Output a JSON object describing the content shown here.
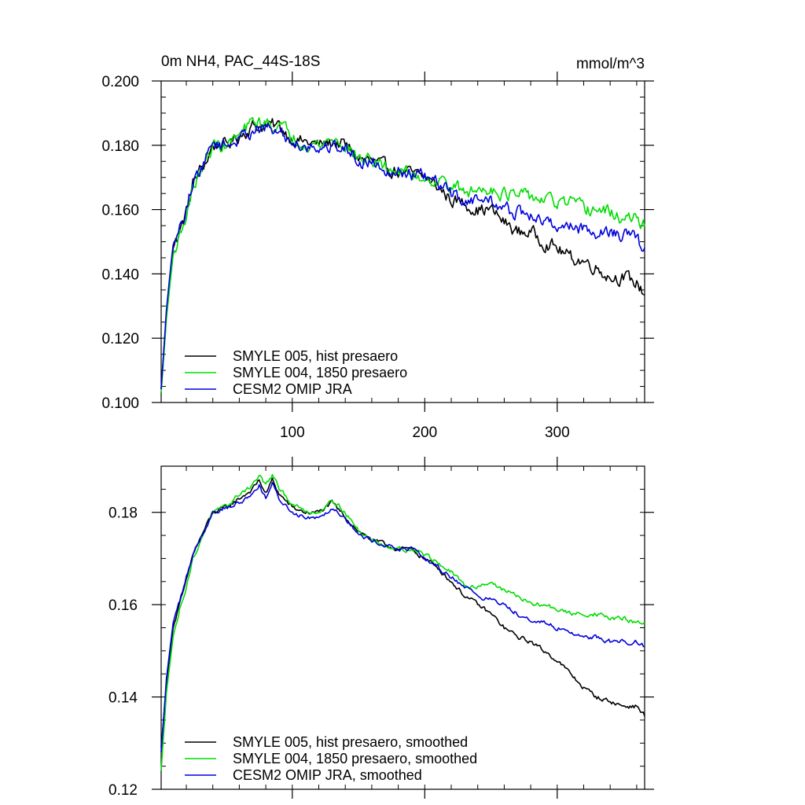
{
  "chart_data": [
    {
      "type": "line",
      "title": "0m NH4, PAC_44S-18S",
      "units": "mmol/m^3",
      "xlim": [
        1,
        366
      ],
      "ylim": [
        0.1,
        0.2
      ],
      "xticks": [
        100,
        200,
        300
      ],
      "xtick_labels": [
        "100",
        "200",
        "300"
      ],
      "yticks": [
        0.1,
        0.12,
        0.14,
        0.16,
        0.18,
        0.2
      ],
      "ytick_labels": [
        "0.100",
        "0.120",
        "0.140",
        "0.160",
        "0.180",
        "0.200"
      ],
      "legend_position": "bottom-left",
      "series": [
        {
          "name": "SMYLE 005, hist presaero",
          "color": "#000000",
          "keypoints": [
            [
              1,
              0.104
            ],
            [
              5,
              0.128
            ],
            [
              10,
              0.148
            ],
            [
              15,
              0.153
            ],
            [
              20,
              0.159
            ],
            [
              25,
              0.168
            ],
            [
              30,
              0.172
            ],
            [
              35,
              0.175
            ],
            [
              40,
              0.18
            ],
            [
              50,
              0.18
            ],
            [
              60,
              0.183
            ],
            [
              70,
              0.186
            ],
            [
              80,
              0.186
            ],
            [
              90,
              0.186
            ],
            [
              100,
              0.182
            ],
            [
              110,
              0.181
            ],
            [
              120,
              0.18
            ],
            [
              130,
              0.181
            ],
            [
              140,
              0.18
            ],
            [
              150,
              0.176
            ],
            [
              160,
              0.175
            ],
            [
              170,
              0.173
            ],
            [
              180,
              0.172
            ],
            [
              190,
              0.171
            ],
            [
              200,
              0.17
            ],
            [
              210,
              0.167
            ],
            [
              220,
              0.163
            ],
            [
              230,
              0.162
            ],
            [
              240,
              0.16
            ],
            [
              250,
              0.16
            ],
            [
              260,
              0.156
            ],
            [
              270,
              0.153
            ],
            [
              280,
              0.153
            ],
            [
              290,
              0.15
            ],
            [
              300,
              0.148
            ],
            [
              310,
              0.145
            ],
            [
              320,
              0.144
            ],
            [
              330,
              0.142
            ],
            [
              340,
              0.139
            ],
            [
              350,
              0.139
            ],
            [
              360,
              0.137
            ],
            [
              366,
              0.134
            ]
          ]
        },
        {
          "name": "SMYLE 004, 1850 presaero",
          "color": "#00dd00",
          "keypoints": [
            [
              1,
              0.103
            ],
            [
              5,
              0.126
            ],
            [
              10,
              0.146
            ],
            [
              15,
              0.152
            ],
            [
              20,
              0.158
            ],
            [
              25,
              0.167
            ],
            [
              30,
              0.171
            ],
            [
              35,
              0.175
            ],
            [
              40,
              0.18
            ],
            [
              50,
              0.18
            ],
            [
              60,
              0.183
            ],
            [
              70,
              0.187
            ],
            [
              80,
              0.187
            ],
            [
              90,
              0.186
            ],
            [
              100,
              0.183
            ],
            [
              110,
              0.181
            ],
            [
              120,
              0.18
            ],
            [
              130,
              0.182
            ],
            [
              140,
              0.18
            ],
            [
              150,
              0.176
            ],
            [
              160,
              0.175
            ],
            [
              170,
              0.173
            ],
            [
              180,
              0.172
            ],
            [
              190,
              0.171
            ],
            [
              200,
              0.17
            ],
            [
              210,
              0.169
            ],
            [
              220,
              0.168
            ],
            [
              230,
              0.165
            ],
            [
              240,
              0.166
            ],
            [
              250,
              0.167
            ],
            [
              260,
              0.165
            ],
            [
              270,
              0.164
            ],
            [
              280,
              0.164
            ],
            [
              290,
              0.163
            ],
            [
              300,
              0.162
            ],
            [
              310,
              0.162
            ],
            [
              320,
              0.16
            ],
            [
              330,
              0.16
            ],
            [
              340,
              0.159
            ],
            [
              350,
              0.157
            ],
            [
              360,
              0.157
            ],
            [
              366,
              0.155
            ]
          ]
        },
        {
          "name": "CESM2 OMIP JRA",
          "color": "#0000dd",
          "keypoints": [
            [
              1,
              0.104
            ],
            [
              5,
              0.129
            ],
            [
              10,
              0.149
            ],
            [
              15,
              0.154
            ],
            [
              20,
              0.16
            ],
            [
              25,
              0.169
            ],
            [
              30,
              0.172
            ],
            [
              35,
              0.176
            ],
            [
              40,
              0.181
            ],
            [
              50,
              0.18
            ],
            [
              60,
              0.182
            ],
            [
              70,
              0.185
            ],
            [
              80,
              0.185
            ],
            [
              90,
              0.184
            ],
            [
              100,
              0.181
            ],
            [
              110,
              0.18
            ],
            [
              120,
              0.179
            ],
            [
              130,
              0.18
            ],
            [
              140,
              0.179
            ],
            [
              150,
              0.175
            ],
            [
              160,
              0.175
            ],
            [
              170,
              0.173
            ],
            [
              180,
              0.172
            ],
            [
              190,
              0.171
            ],
            [
              200,
              0.17
            ],
            [
              210,
              0.168
            ],
            [
              220,
              0.165
            ],
            [
              230,
              0.163
            ],
            [
              240,
              0.163
            ],
            [
              250,
              0.163
            ],
            [
              260,
              0.16
            ],
            [
              270,
              0.159
            ],
            [
              280,
              0.158
            ],
            [
              290,
              0.156
            ],
            [
              300,
              0.155
            ],
            [
              310,
              0.155
            ],
            [
              320,
              0.154
            ],
            [
              330,
              0.153
            ],
            [
              340,
              0.153
            ],
            [
              350,
              0.152
            ],
            [
              360,
              0.151
            ],
            [
              366,
              0.147
            ]
          ]
        }
      ]
    },
    {
      "type": "line",
      "title": "",
      "xlim": [
        1,
        366
      ],
      "ylim": [
        0.12,
        0.19
      ],
      "xticks": [
        100,
        200,
        300
      ],
      "yticks": [
        0.12,
        0.14,
        0.16,
        0.18
      ],
      "ytick_labels": [
        "0.12",
        "0.14",
        "0.16",
        "0.18"
      ],
      "legend_position": "bottom-left",
      "series": [
        {
          "name": "SMYLE 005, hist presaero, smoothed",
          "color": "#000000",
          "keypoints": [
            [
              1,
              0.129
            ],
            [
              5,
              0.143
            ],
            [
              10,
              0.155
            ],
            [
              15,
              0.16
            ],
            [
              20,
              0.165
            ],
            [
              25,
              0.171
            ],
            [
              30,
              0.174
            ],
            [
              35,
              0.177
            ],
            [
              40,
              0.18
            ],
            [
              50,
              0.181
            ],
            [
              60,
              0.183
            ],
            [
              70,
              0.185
            ],
            [
              75,
              0.187
            ],
            [
              80,
              0.184
            ],
            [
              85,
              0.187
            ],
            [
              90,
              0.184
            ],
            [
              100,
              0.181
            ],
            [
              110,
              0.18
            ],
            [
              120,
              0.18
            ],
            [
              130,
              0.182
            ],
            [
              140,
              0.179
            ],
            [
              150,
              0.176
            ],
            [
              160,
              0.174
            ],
            [
              170,
              0.173
            ],
            [
              180,
              0.172
            ],
            [
              190,
              0.172
            ],
            [
              200,
              0.17
            ],
            [
              210,
              0.168
            ],
            [
              220,
              0.165
            ],
            [
              230,
              0.162
            ],
            [
              240,
              0.16
            ],
            [
              250,
              0.158
            ],
            [
              260,
              0.155
            ],
            [
              270,
              0.153
            ],
            [
              280,
              0.152
            ],
            [
              290,
              0.15
            ],
            [
              300,
              0.148
            ],
            [
              310,
              0.145
            ],
            [
              320,
              0.142
            ],
            [
              330,
              0.14
            ],
            [
              340,
              0.139
            ],
            [
              350,
              0.138
            ],
            [
              360,
              0.138
            ],
            [
              366,
              0.136
            ]
          ]
        },
        {
          "name": "SMYLE 004, 1850 presaero, smoothed",
          "color": "#00dd00",
          "keypoints": [
            [
              1,
              0.124
            ],
            [
              5,
              0.141
            ],
            [
              10,
              0.153
            ],
            [
              15,
              0.159
            ],
            [
              20,
              0.164
            ],
            [
              25,
              0.17
            ],
            [
              30,
              0.173
            ],
            [
              35,
              0.177
            ],
            [
              40,
              0.18
            ],
            [
              50,
              0.181
            ],
            [
              60,
              0.184
            ],
            [
              70,
              0.186
            ],
            [
              75,
              0.188
            ],
            [
              80,
              0.186
            ],
            [
              85,
              0.188
            ],
            [
              90,
              0.185
            ],
            [
              100,
              0.182
            ],
            [
              110,
              0.18
            ],
            [
              120,
              0.18
            ],
            [
              130,
              0.183
            ],
            [
              140,
              0.18
            ],
            [
              150,
              0.176
            ],
            [
              160,
              0.174
            ],
            [
              170,
              0.173
            ],
            [
              180,
              0.172
            ],
            [
              190,
              0.172
            ],
            [
              200,
              0.171
            ],
            [
              210,
              0.169
            ],
            [
              220,
              0.167
            ],
            [
              230,
              0.164
            ],
            [
              240,
              0.164
            ],
            [
              250,
              0.165
            ],
            [
              260,
              0.163
            ],
            [
              270,
              0.162
            ],
            [
              280,
              0.16
            ],
            [
              290,
              0.16
            ],
            [
              300,
              0.159
            ],
            [
              310,
              0.158
            ],
            [
              320,
              0.158
            ],
            [
              330,
              0.158
            ],
            [
              340,
              0.157
            ],
            [
              350,
              0.157
            ],
            [
              360,
              0.156
            ],
            [
              366,
              0.156
            ]
          ]
        },
        {
          "name": "CESM2 OMIP JRA, smoothed",
          "color": "#0000dd",
          "keypoints": [
            [
              1,
              0.128
            ],
            [
              5,
              0.144
            ],
            [
              10,
              0.156
            ],
            [
              15,
              0.161
            ],
            [
              20,
              0.166
            ],
            [
              25,
              0.171
            ],
            [
              30,
              0.174
            ],
            [
              35,
              0.177
            ],
            [
              40,
              0.18
            ],
            [
              50,
              0.181
            ],
            [
              60,
              0.182
            ],
            [
              70,
              0.184
            ],
            [
              75,
              0.186
            ],
            [
              80,
              0.183
            ],
            [
              85,
              0.186
            ],
            [
              90,
              0.183
            ],
            [
              100,
              0.18
            ],
            [
              110,
              0.179
            ],
            [
              120,
              0.179
            ],
            [
              130,
              0.181
            ],
            [
              140,
              0.179
            ],
            [
              150,
              0.175
            ],
            [
              160,
              0.174
            ],
            [
              170,
              0.173
            ],
            [
              180,
              0.172
            ],
            [
              190,
              0.172
            ],
            [
              200,
              0.17
            ],
            [
              210,
              0.168
            ],
            [
              220,
              0.166
            ],
            [
              230,
              0.164
            ],
            [
              240,
              0.162
            ],
            [
              250,
              0.161
            ],
            [
              260,
              0.16
            ],
            [
              270,
              0.158
            ],
            [
              280,
              0.157
            ],
            [
              290,
              0.156
            ],
            [
              300,
              0.155
            ],
            [
              310,
              0.154
            ],
            [
              320,
              0.153
            ],
            [
              330,
              0.153
            ],
            [
              340,
              0.152
            ],
            [
              350,
              0.152
            ],
            [
              360,
              0.152
            ],
            [
              366,
              0.151
            ]
          ]
        }
      ]
    }
  ]
}
